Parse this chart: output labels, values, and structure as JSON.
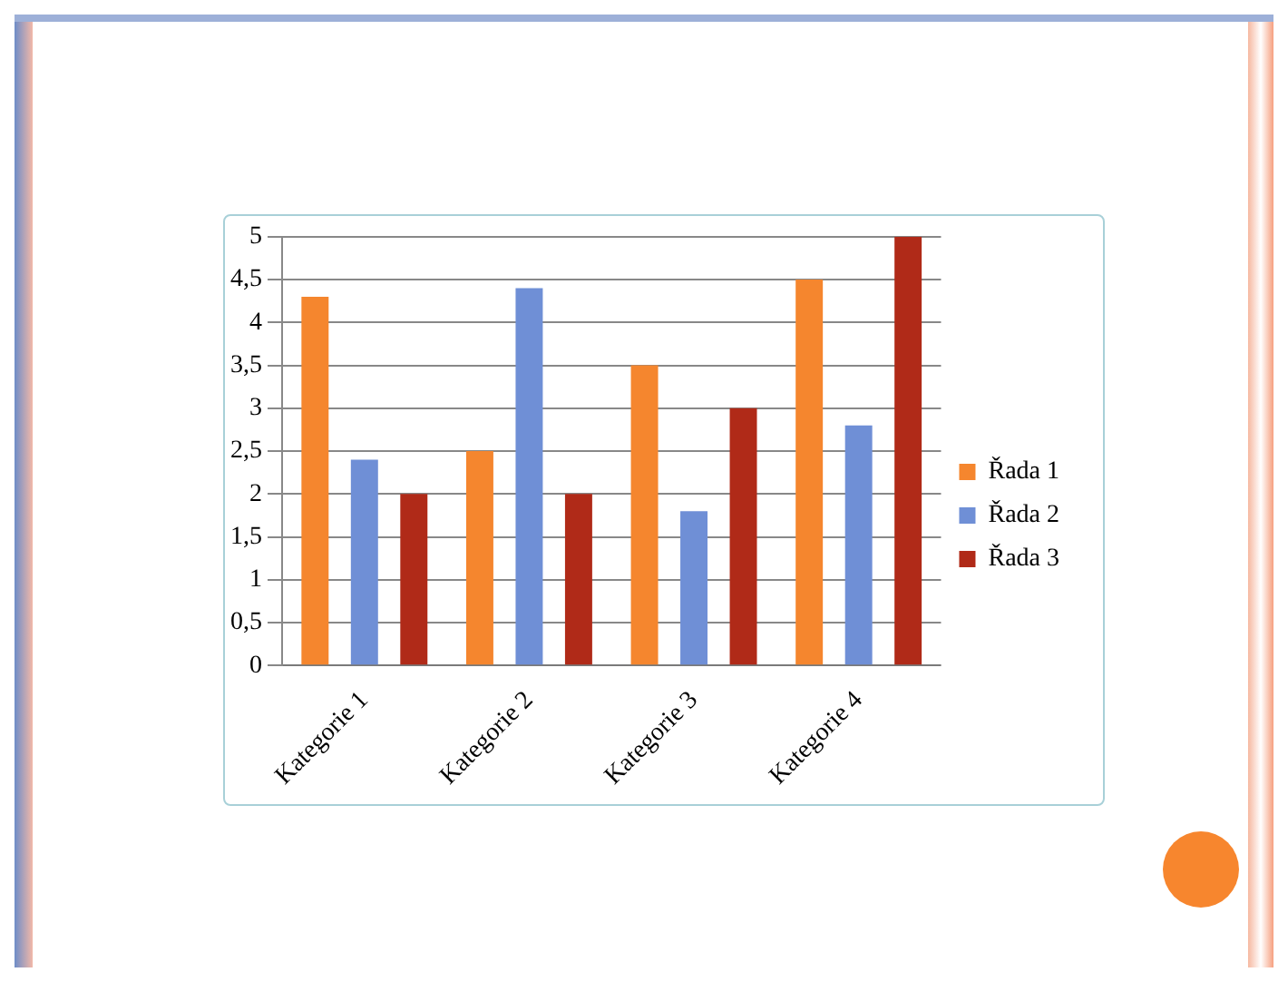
{
  "chart_data": {
    "type": "bar",
    "categories": [
      "Kategorie 1",
      "Kategorie 2",
      "Kategorie 3",
      "Kategorie 4"
    ],
    "series": [
      {
        "name": "Řada 1",
        "color": "#f5862e",
        "values": [
          4.3,
          2.5,
          3.5,
          4.5
        ]
      },
      {
        "name": "Řada 2",
        "color": "#6f8fd6",
        "values": [
          2.4,
          4.4,
          1.8,
          2.8
        ]
      },
      {
        "name": "Řada 3",
        "color": "#b02a18",
        "values": [
          2,
          2,
          3,
          5
        ]
      }
    ],
    "ylim": [
      0,
      5
    ],
    "yticks": [
      0,
      {
        "value": 0.5,
        "label": "0,5"
      },
      1,
      {
        "value": 1.5,
        "label": "1,5"
      },
      2,
      {
        "value": 2.5,
        "label": "2,5"
      },
      3,
      {
        "value": 3.5,
        "label": "3,5"
      },
      4,
      {
        "value": 4.5,
        "label": "4,5"
      },
      5
    ],
    "grid": "y",
    "legend": "right"
  }
}
